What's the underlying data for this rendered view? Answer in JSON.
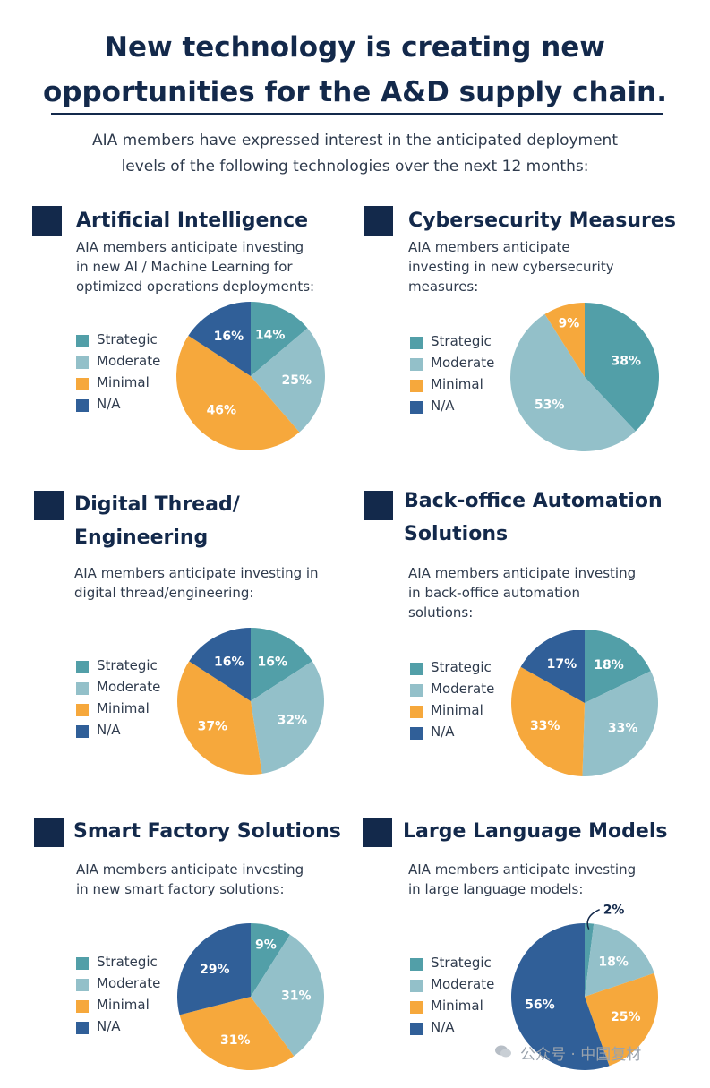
{
  "header": {
    "title_line1": "New technology is creating new",
    "title_line2": "opportunities for the A&D supply chain.",
    "subtitle_line1": "AIA members have expressed interest in the anticipated deployment",
    "subtitle_line2": "levels of the following technologies over the next 12 months:"
  },
  "colors": {
    "Strategic": "#529fa8",
    "Moderate": "#93c0c9",
    "Minimal": "#f6a83c",
    "N/A": "#305f98",
    "navy": "#13294b"
  },
  "legend_labels": [
    "Strategic",
    "Moderate",
    "Minimal",
    "N/A"
  ],
  "chart_data": [
    {
      "type": "pie",
      "title": [
        "Artificial Intelligence"
      ],
      "description": [
        "AIA members anticipate investing",
        "in new AI / Machine Learning for",
        "optimized operations deployments:"
      ],
      "categories": [
        "Strategic",
        "Moderate",
        "Minimal",
        "N/A"
      ],
      "values": [
        14,
        25,
        46,
        16
      ],
      "labels": [
        "14%",
        "25%",
        "46%",
        "16%"
      ]
    },
    {
      "type": "pie",
      "title": [
        "Cybersecurity Measures"
      ],
      "description": [
        "AIA members anticipate",
        "investing in new cybersecurity",
        "measures:"
      ],
      "categories": [
        "Strategic",
        "Moderate",
        "Minimal",
        "N/A"
      ],
      "values": [
        38,
        53,
        9,
        0
      ],
      "labels": [
        "38%",
        "53%",
        "9%",
        ""
      ]
    },
    {
      "type": "pie",
      "title": [
        "Digital Thread/",
        "Engineering"
      ],
      "description": [
        "AIA members anticipate investing in",
        "digital thread/engineering:"
      ],
      "categories": [
        "Strategic",
        "Moderate",
        "Minimal",
        "N/A"
      ],
      "values": [
        16,
        32,
        37,
        16
      ],
      "labels": [
        "16%",
        "32%",
        "37%",
        "16%"
      ]
    },
    {
      "type": "pie",
      "title": [
        "Back-office Automation",
        "Solutions"
      ],
      "description": [
        "AIA members anticipate investing",
        "in back-office automation",
        "solutions:"
      ],
      "categories": [
        "Strategic",
        "Moderate",
        "Minimal",
        "N/A"
      ],
      "values": [
        18,
        33,
        33,
        17
      ],
      "labels": [
        "18%",
        "33%",
        "33%",
        "17%"
      ]
    },
    {
      "type": "pie",
      "title": [
        "Smart Factory Solutions"
      ],
      "description": [
        "AIA members anticipate investing",
        "in new smart factory solutions:"
      ],
      "categories": [
        "Strategic",
        "Moderate",
        "Minimal",
        "N/A"
      ],
      "values": [
        9,
        31,
        31,
        29
      ],
      "labels": [
        "9%",
        "31%",
        "31%",
        "29%"
      ]
    },
    {
      "type": "pie",
      "title": [
        "Large Language Models"
      ],
      "description": [
        "AIA members anticipate investing",
        "in large language models:"
      ],
      "categories": [
        "Strategic",
        "Moderate",
        "Minimal",
        "N/A"
      ],
      "values": [
        2,
        18,
        25,
        56
      ],
      "labels": [
        "2%",
        "18%",
        "25%",
        "56%"
      ]
    }
  ],
  "watermark": "公众号 · 中国复材"
}
